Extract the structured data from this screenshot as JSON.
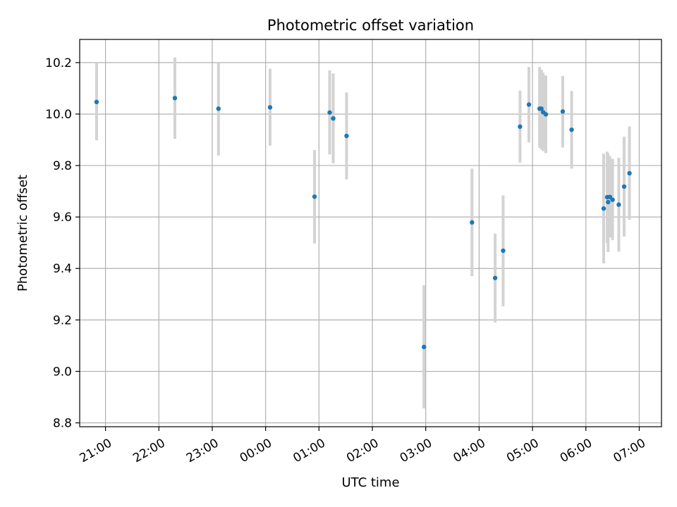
{
  "chart_data": {
    "type": "scatter",
    "title": "Photometric offset variation",
    "xlabel": "UTC time",
    "ylabel": "Photometric offset",
    "grid": true,
    "x_axis_type": "time",
    "x_start": "2024-01-01T20:31:00Z",
    "x_end": "2024-01-02T07:25:00Z",
    "xlim": [
      "20:31",
      "07:25"
    ],
    "ylim": [
      8.785,
      10.29
    ],
    "x_ticks": [
      {
        "label": "21:00",
        "time": "2024-01-01T21:00:00Z"
      },
      {
        "label": "22:00",
        "time": "2024-01-01T22:00:00Z"
      },
      {
        "label": "23:00",
        "time": "2024-01-01T23:00:00Z"
      },
      {
        "label": "00:00",
        "time": "2024-01-02T00:00:00Z"
      },
      {
        "label": "01:00",
        "time": "2024-01-02T01:00:00Z"
      },
      {
        "label": "02:00",
        "time": "2024-01-02T02:00:00Z"
      },
      {
        "label": "03:00",
        "time": "2024-01-02T03:00:00Z"
      },
      {
        "label": "04:00",
        "time": "2024-01-02T04:00:00Z"
      },
      {
        "label": "05:00",
        "time": "2024-01-02T05:00:00Z"
      },
      {
        "label": "06:00",
        "time": "2024-01-02T06:00:00Z"
      },
      {
        "label": "07:00",
        "time": "2024-01-02T07:00:00Z"
      }
    ],
    "y_ticks": [
      {
        "label": "8.8",
        "value": 8.8
      },
      {
        "label": "9.0",
        "value": 9.0
      },
      {
        "label": "9.2",
        "value": 9.2
      },
      {
        "label": "9.4",
        "value": 9.4
      },
      {
        "label": "9.6",
        "value": 9.6
      },
      {
        "label": "9.8",
        "value": 9.8
      },
      {
        "label": "10.0",
        "value": 10.0
      },
      {
        "label": "10.2",
        "value": 10.2
      }
    ],
    "marker_color": "#1f77b4",
    "errorbar_color": "#d3d3d3",
    "grid_color": "#b0b0b0",
    "points": [
      {
        "time": "2024-01-01T20:50:00Z",
        "y": 10.047,
        "err_low": 9.898,
        "err_high": 10.197
      },
      {
        "time": "2024-01-01T22:18:00Z",
        "y": 10.062,
        "err_low": 9.904,
        "err_high": 10.22
      },
      {
        "time": "2024-01-01T23:07:00Z",
        "y": 10.021,
        "err_low": 9.838,
        "err_high": 10.2
      },
      {
        "time": "2024-01-02T00:05:00Z",
        "y": 10.026,
        "err_low": 9.877,
        "err_high": 10.176
      },
      {
        "time": "2024-01-02T00:55:00Z",
        "y": 9.679,
        "err_low": 9.497,
        "err_high": 9.86
      },
      {
        "time": "2024-01-02T01:12:00Z",
        "y": 10.006,
        "err_low": 9.843,
        "err_high": 10.17
      },
      {
        "time": "2024-01-02T01:16:00Z",
        "y": 9.983,
        "err_low": 9.808,
        "err_high": 10.158
      },
      {
        "time": "2024-01-02T01:31:00Z",
        "y": 9.915,
        "err_low": 9.746,
        "err_high": 10.084
      },
      {
        "time": "2024-01-02T02:58:00Z",
        "y": 9.095,
        "err_low": 8.856,
        "err_high": 9.335
      },
      {
        "time": "2024-01-02T03:52:00Z",
        "y": 9.579,
        "err_low": 9.37,
        "err_high": 9.788
      },
      {
        "time": "2024-01-02T04:18:00Z",
        "y": 9.363,
        "err_low": 9.19,
        "err_high": 9.535
      },
      {
        "time": "2024-01-02T04:27:00Z",
        "y": 9.469,
        "err_low": 9.253,
        "err_high": 9.684
      },
      {
        "time": "2024-01-02T04:46:00Z",
        "y": 9.951,
        "err_low": 9.811,
        "err_high": 10.091
      },
      {
        "time": "2024-01-02T04:56:00Z",
        "y": 10.037,
        "err_low": 9.89,
        "err_high": 10.183
      },
      {
        "time": "2024-01-02T05:08:00Z",
        "y": 10.021,
        "err_low": 9.869,
        "err_high": 10.183
      },
      {
        "time": "2024-01-02T05:10:00Z",
        "y": 10.021,
        "err_low": 9.862,
        "err_high": 10.172
      },
      {
        "time": "2024-01-02T05:12:00Z",
        "y": 10.007,
        "err_low": 9.856,
        "err_high": 10.161
      },
      {
        "time": "2024-01-02T05:15:00Z",
        "y": 9.999,
        "err_low": 9.848,
        "err_high": 10.15
      },
      {
        "time": "2024-01-02T05:34:00Z",
        "y": 10.01,
        "err_low": 9.87,
        "err_high": 10.148
      },
      {
        "time": "2024-01-02T05:44:00Z",
        "y": 9.939,
        "err_low": 9.788,
        "err_high": 10.09
      },
      {
        "time": "2024-01-02T06:20:00Z",
        "y": 9.633,
        "err_low": 9.42,
        "err_high": 9.846
      },
      {
        "time": "2024-01-02T06:24:00Z",
        "y": 9.677,
        "err_low": 9.499,
        "err_high": 9.854
      },
      {
        "time": "2024-01-02T06:25:00Z",
        "y": 9.658,
        "err_low": 9.464,
        "err_high": 9.846
      },
      {
        "time": "2024-01-02T06:27:00Z",
        "y": 9.678,
        "err_low": 9.52,
        "err_high": 9.836
      },
      {
        "time": "2024-01-02T06:30:00Z",
        "y": 9.667,
        "err_low": 9.51,
        "err_high": 9.826
      },
      {
        "time": "2024-01-02T06:37:00Z",
        "y": 9.648,
        "err_low": 9.465,
        "err_high": 9.83
      },
      {
        "time": "2024-01-02T06:43:00Z",
        "y": 9.718,
        "err_low": 9.524,
        "err_high": 9.912
      },
      {
        "time": "2024-01-02T06:49:00Z",
        "y": 9.77,
        "err_low": 9.589,
        "err_high": 9.952
      }
    ]
  }
}
